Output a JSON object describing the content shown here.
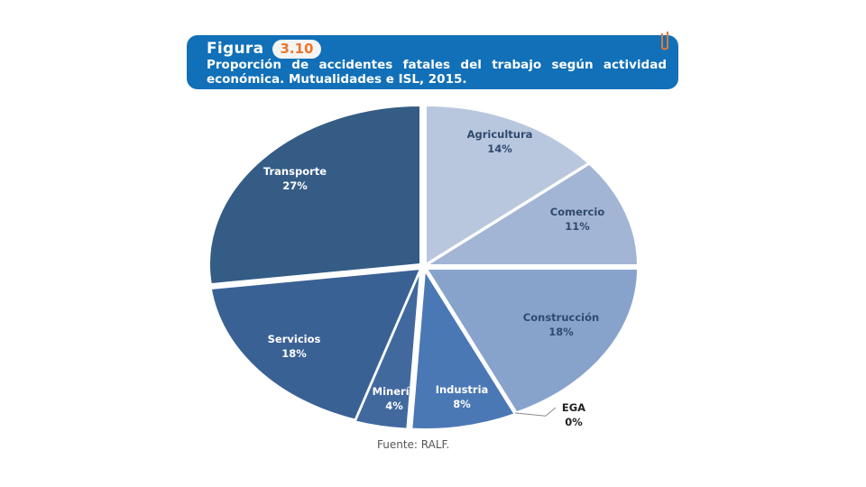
{
  "figure": {
    "label": "Figura",
    "number": "3.10",
    "title": "Proporción de accidentes fatales del trabajo según actividad económica. Mutualidades e ISL, 2015."
  },
  "source": "Fuente: RALF.",
  "colors": {
    "banner": "#1170b8",
    "number_text": "#e8772e"
  },
  "chart_data": {
    "type": "pie",
    "slices": [
      {
        "name": "Agricultura",
        "value": 14,
        "label": "14%",
        "color": "#b9c7de"
      },
      {
        "name": "Comercio",
        "value": 11,
        "label": "11%",
        "color": "#a3b5d5"
      },
      {
        "name": "Construcción",
        "value": 18,
        "label": "18%",
        "color": "#88a3cb"
      },
      {
        "name": "EGA",
        "value": 0,
        "label": "0%",
        "color": "#6f8fbd"
      },
      {
        "name": "Industria",
        "value": 8,
        "label": "8%",
        "color": "#4a78b4"
      },
      {
        "name": "Minería",
        "value": 4,
        "label": "4%",
        "color": "#41699e"
      },
      {
        "name": "Servicios",
        "value": 18,
        "label": "18%",
        "color": "#3a6194"
      },
      {
        "name": "Transporte",
        "value": 27,
        "label": "27%",
        "color": "#345c85"
      }
    ]
  }
}
